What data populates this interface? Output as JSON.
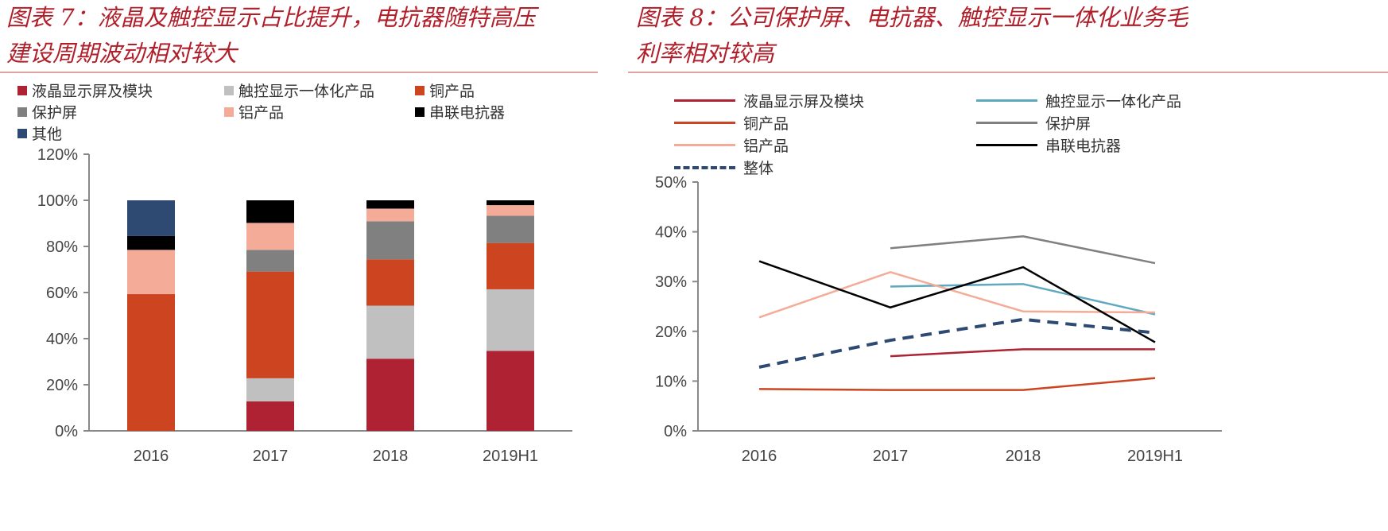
{
  "left": {
    "title_line1": "图表 7：液晶及触控显示占比提升，电抗器随特高压",
    "title_line2": "建设周期波动相对较大"
  },
  "right": {
    "title_line1": "图表 8：公司保护屏、电抗器、触控显示一体化业务毛",
    "title_line2": "利率相对较高"
  },
  "chart_data": [
    {
      "type": "bar",
      "stacked": true,
      "categories": [
        "2016",
        "2017",
        "2018",
        "2019H1"
      ],
      "ylim": [
        0,
        120
      ],
      "yticks": [
        "0%",
        "20%",
        "40%",
        "60%",
        "80%",
        "100%",
        "120%"
      ],
      "legend_position": "top",
      "grid": false,
      "series": [
        {
          "name": "液晶显示屏及模块",
          "color": "#ae2233",
          "values": [
            0,
            12.8,
            31.3,
            34.7
          ]
        },
        {
          "name": "触控显示一体化产品",
          "color": "#c0c0c0",
          "values": [
            0,
            10.0,
            23.0,
            26.7
          ]
        },
        {
          "name": "铜产品",
          "color": "#cc4420",
          "values": [
            59.3,
            46.3,
            20.1,
            20.1
          ]
        },
        {
          "name": "保护屏",
          "color": "#808080",
          "values": [
            0,
            9.4,
            16.5,
            11.8
          ]
        },
        {
          "name": "铝产品",
          "color": "#f4ab98",
          "values": [
            19.2,
            11.7,
            5.5,
            4.6
          ]
        },
        {
          "name": "串联电抗器",
          "color": "#000000",
          "values": [
            6.0,
            9.8,
            3.6,
            2.1
          ]
        },
        {
          "name": "其他",
          "color": "#2f4a72",
          "values": [
            15.5,
            0,
            0,
            0
          ]
        }
      ]
    },
    {
      "type": "line",
      "categories": [
        "2016",
        "2017",
        "2018",
        "2019H1"
      ],
      "ylim": [
        0,
        50
      ],
      "yticks": [
        "0%",
        "10%",
        "20%",
        "30%",
        "40%",
        "50%"
      ],
      "legend_position": "top",
      "grid": false,
      "series": [
        {
          "name": "液晶显示屏及模块",
          "color": "#ae2233",
          "values": [
            null,
            15.0,
            16.4,
            16.4
          ]
        },
        {
          "name": "触控显示一体化产品",
          "color": "#5ea9c0",
          "values": [
            null,
            29.0,
            29.5,
            23.4
          ]
        },
        {
          "name": "铜产品",
          "color": "#cc4420",
          "values": [
            8.4,
            8.2,
            8.2,
            10.6
          ]
        },
        {
          "name": "保护屏",
          "color": "#808080",
          "values": [
            null,
            36.7,
            39.1,
            33.7
          ]
        },
        {
          "name": "铝产品",
          "color": "#f4ab98",
          "values": [
            22.8,
            31.9,
            24.0,
            23.8
          ]
        },
        {
          "name": "串联电抗器",
          "color": "#000000",
          "values": [
            34.1,
            24.8,
            32.9,
            17.8
          ]
        },
        {
          "name": "整体",
          "color": "#2f4a72",
          "dashed": true,
          "values": [
            12.8,
            18.2,
            22.4,
            19.7
          ]
        }
      ]
    }
  ]
}
